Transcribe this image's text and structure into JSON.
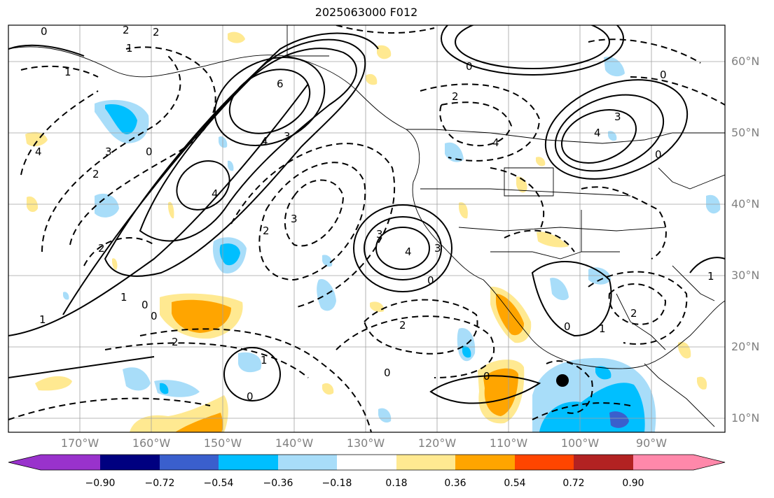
{
  "title": "2025063000 F012",
  "lat_labels": [
    "60°N",
    "50°N",
    "40°N",
    "30°N",
    "20°N",
    "10°N"
  ],
  "lon_labels": [
    "170°W",
    "160°W",
    "150°W",
    "140°W",
    "130°W",
    "120°W",
    "110°W",
    "100°W",
    "90°W"
  ],
  "colorbar": {
    "ticks": [
      "−0.90",
      "−0.72",
      "−0.54",
      "−0.36",
      "−0.18",
      "0.18",
      "0.36",
      "0.54",
      "0.72",
      "0.90"
    ],
    "colors": [
      "#9932cc",
      "#000080",
      "#3a5fcd",
      "#00bfff",
      "#a8ddf9",
      "#ffffff",
      "#ffe991",
      "#ffa500",
      "#ff4500",
      "#b22222",
      "#ff88aa"
    ]
  },
  "contour_labels": [
    "0",
    "2",
    "1",
    "2",
    "6",
    "4",
    "3",
    "4",
    "2",
    "3",
    "1",
    "0",
    "2",
    "1",
    "4",
    "3",
    "2",
    "3",
    "4",
    "3",
    "0",
    "2",
    "1",
    "0",
    "0",
    "2",
    "1",
    "0",
    "4",
    "3",
    "0",
    "1",
    "2",
    "0",
    "1",
    "0",
    "0",
    "0",
    "2",
    "0",
    "4"
  ],
  "marker": "black-dot"
}
